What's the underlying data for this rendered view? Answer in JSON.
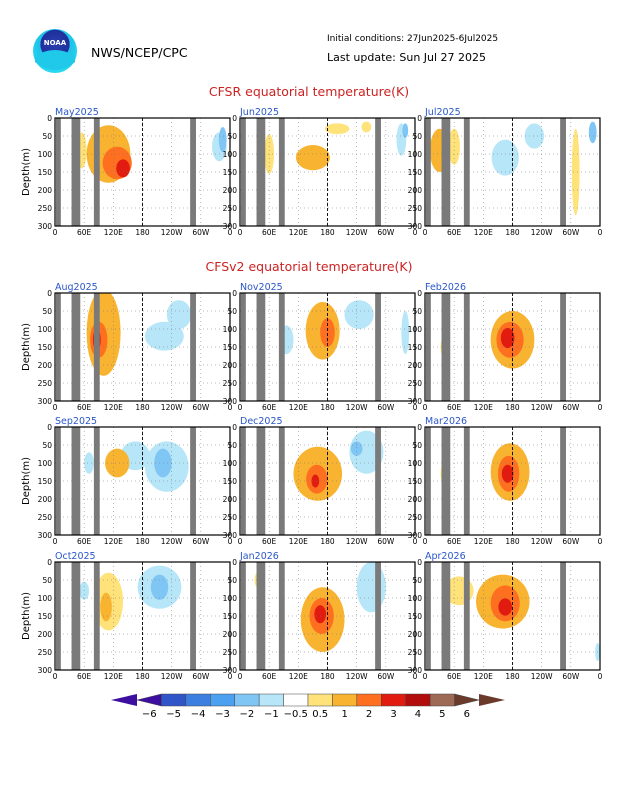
{
  "header": {
    "agency": "NWS/NCEP/CPC",
    "initial_conditions": "Initial conditions: 27Jun2025-6Jul2025",
    "last_update": "Last update: Sun Jul 27 2025",
    "logo_text": "NOAA"
  },
  "colors": {
    "land": "#7a7a7a",
    "contour_levels": [
      -6,
      -5,
      -4,
      -3,
      -2,
      -1,
      -0.5,
      0.5,
      1,
      2,
      3,
      4,
      5,
      6
    ],
    "fills": [
      "#3c0fa0",
      "#2f55c8",
      "#3d7fe0",
      "#4ba0f0",
      "#80c6f5",
      "#b6e6f8",
      "#ffffff",
      "#ffe27a",
      "#f8b430",
      "#ff6f20",
      "#e21b10",
      "#b30c0c",
      "#9e6a55",
      "#6b3a2b"
    ]
  },
  "chart_data": {
    "type": "heatmap",
    "variable": "equatorial temperature anomaly (K)",
    "x_ticks": [
      "0",
      "60E",
      "120E",
      "180",
      "120W",
      "60W",
      "0"
    ],
    "y_ticks": [
      "0",
      "50",
      "100",
      "150",
      "200",
      "250",
      "300"
    ],
    "ylabel": "Depth(m)",
    "ylim": [
      0,
      300
    ],
    "xlim": [
      0,
      360
    ],
    "land_longitudes": [
      [
        2,
        12
      ],
      [
        34,
        52
      ],
      [
        80,
        92
      ],
      [
        278,
        290
      ]
    ],
    "colorbar_labels": [
      "-6",
      "-5",
      "-4",
      "-3",
      "-2",
      "-1",
      "-0.5",
      "0.5",
      "1",
      "2",
      "3",
      "4",
      "5",
      "6"
    ],
    "sections": [
      {
        "title": "CFSR equatorial temperature(K)",
        "panels": [
          {
            "label": "May2025",
            "blobs": [
              {
                "lon": 140,
                "depth": 140,
                "rx": 14,
                "ry": 25,
                "v": 3
              },
              {
                "lon": 128,
                "depth": 125,
                "rx": 30,
                "ry": 45,
                "v": 2
              },
              {
                "lon": 110,
                "depth": 100,
                "rx": 45,
                "ry": 80,
                "v": 1
              },
              {
                "lon": 55,
                "depth": 90,
                "rx": 10,
                "ry": 50,
                "v": 0.5
              },
              {
                "lon": 345,
                "depth": 60,
                "rx": 8,
                "ry": 35,
                "v": -2
              },
              {
                "lon": 338,
                "depth": 80,
                "rx": 15,
                "ry": 40,
                "v": -1
              }
            ]
          },
          {
            "label": "Jun2025",
            "blobs": [
              {
                "lon": 150,
                "depth": 110,
                "rx": 35,
                "ry": 35,
                "v": 1
              },
              {
                "lon": 60,
                "depth": 100,
                "rx": 10,
                "ry": 55,
                "v": 0.5
              },
              {
                "lon": 200,
                "depth": 30,
                "rx": 25,
                "ry": 15,
                "v": 0.5
              },
              {
                "lon": 260,
                "depth": 25,
                "rx": 10,
                "ry": 15,
                "v": 0.5
              },
              {
                "lon": 332,
                "depth": 60,
                "rx": 10,
                "ry": 45,
                "v": -1
              },
              {
                "lon": 340,
                "depth": 35,
                "rx": 6,
                "ry": 20,
                "v": -2
              }
            ]
          },
          {
            "label": "Jul2025",
            "blobs": [
              {
                "lon": 30,
                "depth": 90,
                "rx": 20,
                "ry": 60,
                "v": 1
              },
              {
                "lon": 60,
                "depth": 80,
                "rx": 12,
                "ry": 50,
                "v": 0.5
              },
              {
                "lon": 165,
                "depth": 110,
                "rx": 28,
                "ry": 50,
                "v": -1
              },
              {
                "lon": 225,
                "depth": 50,
                "rx": 20,
                "ry": 35,
                "v": -1
              },
              {
                "lon": 310,
                "depth": 150,
                "rx": 8,
                "ry": 120,
                "v": 0.5
              },
              {
                "lon": 345,
                "depth": 40,
                "rx": 8,
                "ry": 30,
                "v": -2
              }
            ]
          }
        ]
      },
      {
        "title": "CFSv2 equatorial temperature(K)",
        "panels": [
          {
            "label": "Aug2025",
            "blobs": [
              {
                "lon": 86,
                "depth": 130,
                "rx": 8,
                "ry": 30,
                "v": 3
              },
              {
                "lon": 90,
                "depth": 130,
                "rx": 18,
                "ry": 50,
                "v": 2
              },
              {
                "lon": 100,
                "depth": 110,
                "rx": 35,
                "ry": 120,
                "v": 1
              },
              {
                "lon": 225,
                "depth": 120,
                "rx": 40,
                "ry": 40,
                "v": -1
              },
              {
                "lon": 255,
                "depth": 60,
                "rx": 25,
                "ry": 40,
                "v": -0.5
              }
            ]
          },
          {
            "label": "Sep2025",
            "blobs": [
              {
                "lon": 128,
                "depth": 100,
                "rx": 25,
                "ry": 40,
                "v": 1
              },
              {
                "lon": 70,
                "depth": 100,
                "rx": 10,
                "ry": 30,
                "v": -1
              },
              {
                "lon": 230,
                "depth": 110,
                "rx": 45,
                "ry": 70,
                "v": -1
              },
              {
                "lon": 222,
                "depth": 100,
                "rx": 18,
                "ry": 40,
                "v": -2
              },
              {
                "lon": 165,
                "depth": 80,
                "rx": 30,
                "ry": 40,
                "v": -0.5
              }
            ]
          },
          {
            "label": "Oct2025",
            "blobs": [
              {
                "lon": 110,
                "depth": 110,
                "rx": 30,
                "ry": 80,
                "v": 0.5
              },
              {
                "lon": 105,
                "depth": 125,
                "rx": 12,
                "ry": 40,
                "v": 1
              },
              {
                "lon": 215,
                "depth": 70,
                "rx": 45,
                "ry": 60,
                "v": -1
              },
              {
                "lon": 215,
                "depth": 70,
                "rx": 18,
                "ry": 35,
                "v": -2
              },
              {
                "lon": 60,
                "depth": 80,
                "rx": 10,
                "ry": 25,
                "v": -1
              }
            ]
          },
          {
            "label": "Nov2025",
            "blobs": [
              {
                "lon": 170,
                "depth": 105,
                "rx": 35,
                "ry": 80,
                "v": 1
              },
              {
                "lon": 180,
                "depth": 110,
                "rx": 15,
                "ry": 40,
                "v": 2
              },
              {
                "lon": 95,
                "depth": 130,
                "rx": 15,
                "ry": 40,
                "v": -0.5
              },
              {
                "lon": 245,
                "depth": 60,
                "rx": 30,
                "ry": 40,
                "v": -0.5
              },
              {
                "lon": 340,
                "depth": 110,
                "rx": 8,
                "ry": 60,
                "v": -0.5
              }
            ]
          },
          {
            "label": "Dec2025",
            "blobs": [
              {
                "lon": 160,
                "depth": 130,
                "rx": 50,
                "ry": 75,
                "v": 1
              },
              {
                "lon": 158,
                "depth": 145,
                "rx": 22,
                "ry": 40,
                "v": 2
              },
              {
                "lon": 155,
                "depth": 150,
                "rx": 8,
                "ry": 18,
                "v": 3
              },
              {
                "lon": 260,
                "depth": 70,
                "rx": 35,
                "ry": 60,
                "v": -1
              },
              {
                "lon": 240,
                "depth": 60,
                "rx": 12,
                "ry": 20,
                "v": -2
              }
            ]
          },
          {
            "label": "Jan2026",
            "blobs": [
              {
                "lon": 170,
                "depth": 160,
                "rx": 45,
                "ry": 90,
                "v": 1
              },
              {
                "lon": 168,
                "depth": 150,
                "rx": 25,
                "ry": 50,
                "v": 2
              },
              {
                "lon": 165,
                "depth": 145,
                "rx": 12,
                "ry": 25,
                "v": 3
              },
              {
                "lon": 40,
                "depth": 50,
                "rx": 10,
                "ry": 25,
                "v": 0.5
              },
              {
                "lon": 270,
                "depth": 70,
                "rx": 30,
                "ry": 70,
                "v": -0.5
              }
            ]
          },
          {
            "label": "Feb2026",
            "blobs": [
              {
                "lon": 180,
                "depth": 130,
                "rx": 45,
                "ry": 80,
                "v": 1
              },
              {
                "lon": 175,
                "depth": 130,
                "rx": 28,
                "ry": 50,
                "v": 2
              },
              {
                "lon": 170,
                "depth": 125,
                "rx": 14,
                "ry": 28,
                "v": 3
              },
              {
                "lon": 40,
                "depth": 150,
                "rx": 8,
                "ry": 30,
                "v": 0.5
              }
            ]
          },
          {
            "label": "Mar2026",
            "blobs": [
              {
                "lon": 175,
                "depth": 125,
                "rx": 40,
                "ry": 80,
                "v": 1
              },
              {
                "lon": 172,
                "depth": 130,
                "rx": 22,
                "ry": 50,
                "v": 2
              },
              {
                "lon": 170,
                "depth": 130,
                "rx": 12,
                "ry": 25,
                "v": 3
              },
              {
                "lon": 40,
                "depth": 130,
                "rx": 8,
                "ry": 30,
                "v": 0.5
              }
            ]
          },
          {
            "label": "Apr2026",
            "blobs": [
              {
                "lon": 160,
                "depth": 110,
                "rx": 55,
                "ry": 75,
                "v": 1
              },
              {
                "lon": 165,
                "depth": 115,
                "rx": 30,
                "ry": 50,
                "v": 2
              },
              {
                "lon": 165,
                "depth": 125,
                "rx": 14,
                "ry": 24,
                "v": 3
              },
              {
                "lon": 70,
                "depth": 80,
                "rx": 30,
                "ry": 40,
                "v": 0.5
              },
              {
                "lon": 355,
                "depth": 250,
                "rx": 5,
                "ry": 25,
                "v": -1
              }
            ]
          }
        ]
      }
    ]
  }
}
